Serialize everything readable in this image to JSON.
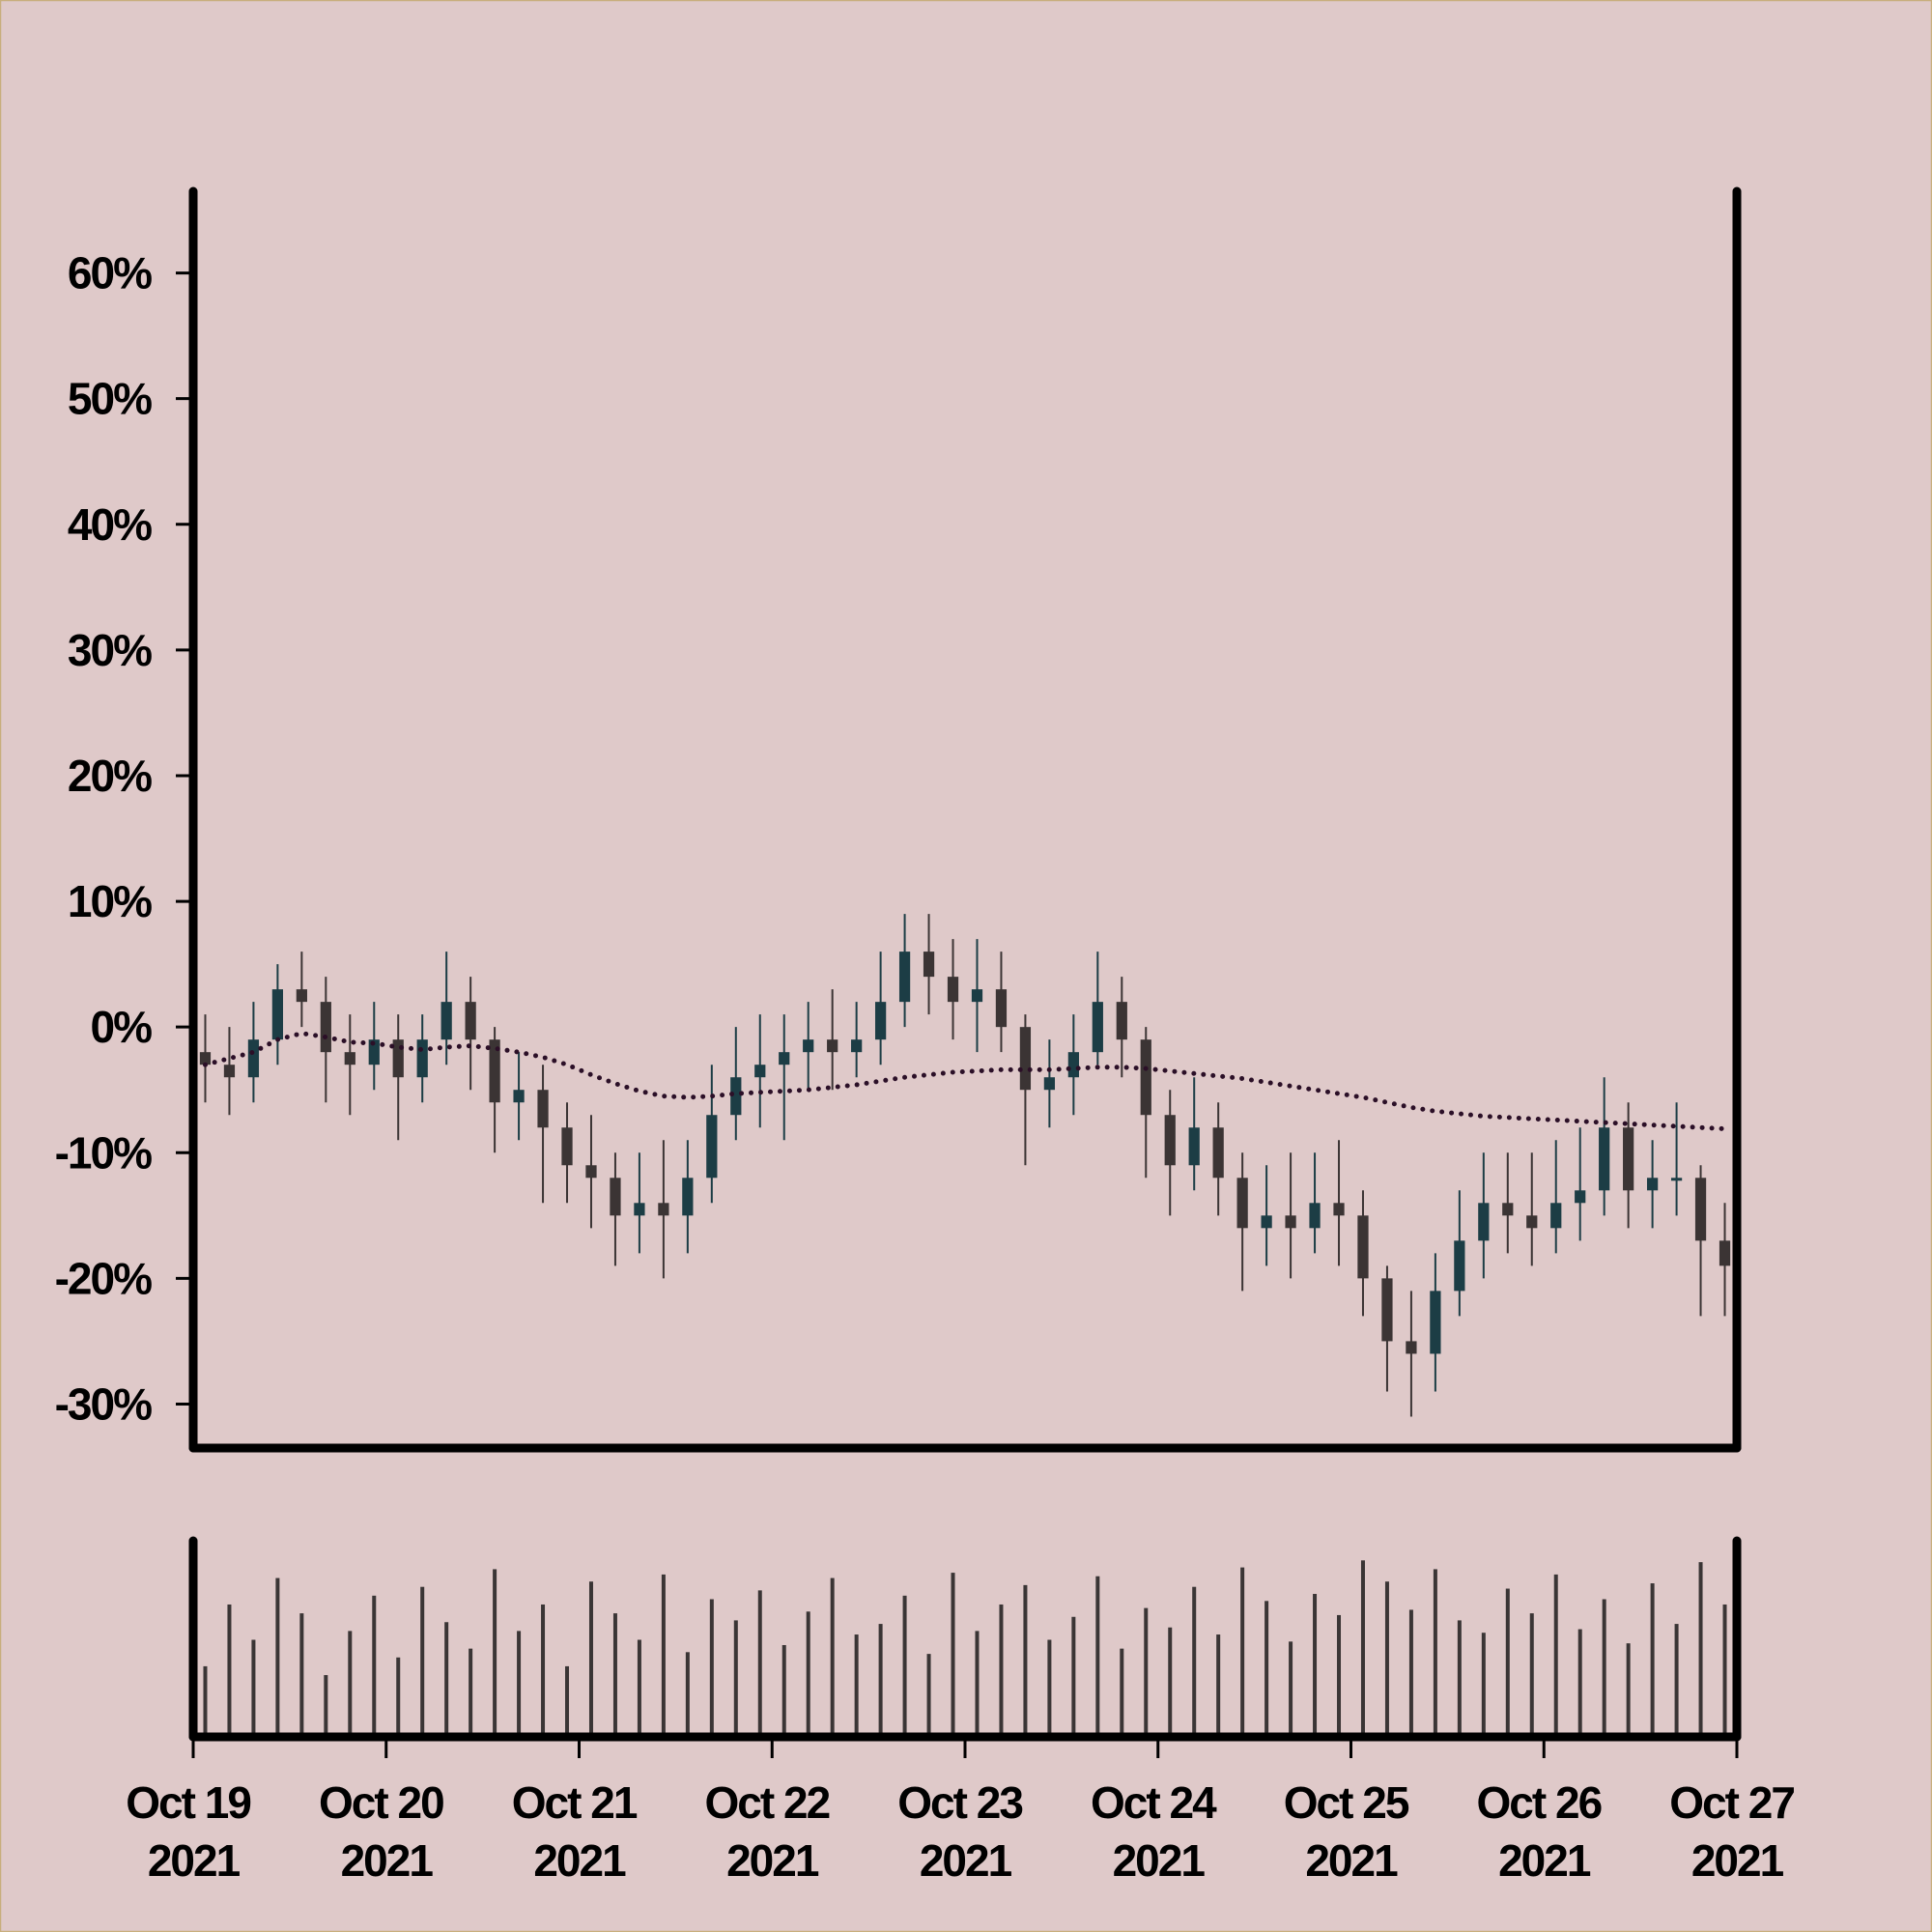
{
  "chart_data": {
    "type": "candlestick",
    "x": [
      "2021-10-19 00:00",
      "2021-10-19 03:00",
      "2021-10-19 06:00",
      "2021-10-19 09:00",
      "2021-10-19 12:00",
      "2021-10-19 15:00",
      "2021-10-19 18:00",
      "2021-10-19 21:00",
      "2021-10-20 00:00",
      "2021-10-20 03:00",
      "2021-10-20 06:00",
      "2021-10-20 09:00",
      "2021-10-20 12:00",
      "2021-10-20 15:00",
      "2021-10-20 18:00",
      "2021-10-20 21:00",
      "2021-10-21 00:00",
      "2021-10-21 03:00",
      "2021-10-21 06:00",
      "2021-10-21 09:00",
      "2021-10-21 12:00",
      "2021-10-21 15:00",
      "2021-10-21 18:00",
      "2021-10-21 21:00",
      "2021-10-22 00:00",
      "2021-10-22 03:00",
      "2021-10-22 06:00",
      "2021-10-22 09:00",
      "2021-10-22 12:00",
      "2021-10-22 15:00",
      "2021-10-22 18:00",
      "2021-10-22 21:00",
      "2021-10-23 00:00",
      "2021-10-23 03:00",
      "2021-10-23 06:00",
      "2021-10-23 09:00",
      "2021-10-23 12:00",
      "2021-10-23 15:00",
      "2021-10-23 18:00",
      "2021-10-23 21:00",
      "2021-10-24 00:00",
      "2021-10-24 03:00",
      "2021-10-24 06:00",
      "2021-10-24 09:00",
      "2021-10-24 12:00",
      "2021-10-24 15:00",
      "2021-10-24 18:00",
      "2021-10-24 21:00",
      "2021-10-25 00:00",
      "2021-10-25 03:00",
      "2021-10-25 06:00",
      "2021-10-25 09:00",
      "2021-10-25 12:00",
      "2021-10-25 15:00",
      "2021-10-25 18:00",
      "2021-10-25 21:00",
      "2021-10-26 00:00",
      "2021-10-26 03:00",
      "2021-10-26 06:00",
      "2021-10-26 09:00",
      "2021-10-26 12:00",
      "2021-10-26 15:00",
      "2021-10-26 18:00",
      "2021-10-26 21:00"
    ],
    "open": [
      -2,
      -3,
      -4,
      -1,
      3,
      2,
      -2,
      -3,
      -1,
      -4,
      -1,
      2,
      -1,
      -6,
      -5,
      -8,
      -11,
      -12,
      -15,
      -14,
      -15,
      -12,
      -7,
      -4,
      -3,
      -2,
      -1,
      -2,
      -1,
      2,
      6,
      4,
      2,
      3,
      0,
      -5,
      -4,
      -2,
      2,
      -1,
      -7,
      -11,
      -8,
      -12,
      -16,
      -15,
      -16,
      -14,
      -15,
      -20,
      -25,
      -26,
      -21,
      -17,
      -14,
      -15,
      -16,
      -14,
      -13,
      -8,
      -13,
      -12,
      -12,
      -17
    ],
    "high": [
      1,
      0,
      2,
      5,
      6,
      4,
      1,
      2,
      1,
      1,
      6,
      4,
      0,
      -2,
      -3,
      -6,
      -7,
      -10,
      -10,
      -9,
      -9,
      -3,
      0,
      1,
      1,
      2,
      3,
      2,
      6,
      9,
      9,
      7,
      7,
      6,
      1,
      -1,
      1,
      6,
      4,
      0,
      -5,
      -4,
      -6,
      -10,
      -11,
      -10,
      -10,
      -9,
      -13,
      -19,
      -21,
      -18,
      -13,
      -10,
      -10,
      -10,
      -9,
      -8,
      -4,
      -6,
      -9,
      -6,
      -11,
      -14
    ],
    "low": [
      -6,
      -7,
      -6,
      -3,
      0,
      -6,
      -7,
      -5,
      -9,
      -6,
      -3,
      -5,
      -10,
      -9,
      -14,
      -14,
      -16,
      -19,
      -18,
      -20,
      -18,
      -14,
      -9,
      -8,
      -9,
      -5,
      -5,
      -4,
      -3,
      0,
      1,
      -1,
      -2,
      -2,
      -11,
      -8,
      -7,
      -3,
      -4,
      -12,
      -15,
      -13,
      -15,
      -21,
      -19,
      -20,
      -18,
      -19,
      -23,
      -29,
      -31,
      -29,
      -23,
      -20,
      -18,
      -19,
      -18,
      -17,
      -15,
      -16,
      -16,
      -15,
      -23,
      -23
    ],
    "close": [
      -3,
      -4,
      -1,
      3,
      2,
      -2,
      -3,
      -1,
      -4,
      -1,
      2,
      -1,
      -6,
      -5,
      -8,
      -11,
      -12,
      -15,
      -14,
      -15,
      -12,
      -7,
      -4,
      -3,
      -2,
      -1,
      -2,
      -1,
      2,
      6,
      4,
      2,
      3,
      0,
      -5,
      -4,
      -2,
      2,
      -1,
      -7,
      -11,
      -8,
      -12,
      -16,
      -15,
      -16,
      -14,
      -15,
      -20,
      -25,
      -26,
      -21,
      -17,
      -14,
      -15,
      -16,
      -14,
      -13,
      -8,
      -13,
      -12,
      -12,
      -17,
      -19
    ],
    "ma": [
      -3,
      -2.5,
      -2,
      -1,
      -0.5,
      -0.8,
      -1.2,
      -1.3,
      -1.6,
      -1.8,
      -1.6,
      -1.5,
      -1.7,
      -2,
      -2.4,
      -3,
      -3.8,
      -4.5,
      -5.1,
      -5.5,
      -5.6,
      -5.5,
      -5.3,
      -5.2,
      -5.1,
      -5,
      -4.8,
      -4.6,
      -4.3,
      -4,
      -3.8,
      -3.6,
      -3.5,
      -3.4,
      -3.4,
      -3.4,
      -3.3,
      -3.2,
      -3.2,
      -3.3,
      -3.5,
      -3.7,
      -3.9,
      -4.1,
      -4.4,
      -4.7,
      -5,
      -5.3,
      -5.6,
      -6,
      -6.4,
      -6.7,
      -6.9,
      -7.1,
      -7.2,
      -7.3,
      -7.4,
      -7.5,
      -7.6,
      -7.7,
      -7.8,
      -7.9,
      -8,
      -8.1
    ],
    "volume": [
      40,
      75,
      55,
      90,
      70,
      35,
      60,
      80,
      45,
      85,
      65,
      50,
      95,
      60,
      75,
      40,
      88,
      70,
      55,
      92,
      48,
      78,
      66,
      83,
      52,
      71,
      90,
      58,
      64,
      80,
      47,
      93,
      60,
      75,
      86,
      55,
      68,
      91,
      50,
      73,
      62,
      85,
      58,
      96,
      77,
      54,
      81,
      69,
      100,
      88,
      72,
      95,
      66,
      59,
      84,
      70,
      92,
      61,
      78,
      53,
      87,
      64,
      99,
      75
    ],
    "up_color": "#1c3d45",
    "down_color": "#3b3434",
    "ma_color": "#2b0f27",
    "volume_color": "#3a3535",
    "xlim": [
      "2021-10-19",
      "2021-10-27"
    ],
    "xticks": [
      {
        "value": "2021-10-19",
        "label": "Oct 19 2021"
      },
      {
        "value": "2021-10-20",
        "label": "Oct 20 2021"
      },
      {
        "value": "2021-10-21",
        "label": "Oct 21 2021"
      },
      {
        "value": "2021-10-22",
        "label": "Oct 22 2021"
      },
      {
        "value": "2021-10-23",
        "label": "Oct 23 2021"
      },
      {
        "value": "2021-10-24",
        "label": "Oct 24 2021"
      },
      {
        "value": "2021-10-25",
        "label": "Oct 25 2021"
      },
      {
        "value": "2021-10-26",
        "label": "Oct 26 2021"
      },
      {
        "value": "2021-10-27",
        "label": "Oct 27 2021"
      }
    ],
    "ylim": [
      -33.5,
      66.5
    ],
    "yticks": [
      {
        "value": -30,
        "label": "-30%"
      },
      {
        "value": -20,
        "label": "-20%"
      },
      {
        "value": -10,
        "label": "-10%"
      },
      {
        "value": 0,
        "label": "0%"
      },
      {
        "value": 10,
        "label": "10%"
      },
      {
        "value": 20,
        "label": "20%"
      },
      {
        "value": 30,
        "label": "30%"
      },
      {
        "value": 40,
        "label": "40%"
      },
      {
        "value": 50,
        "label": "50%"
      },
      {
        "value": 60,
        "label": "60%"
      }
    ]
  }
}
